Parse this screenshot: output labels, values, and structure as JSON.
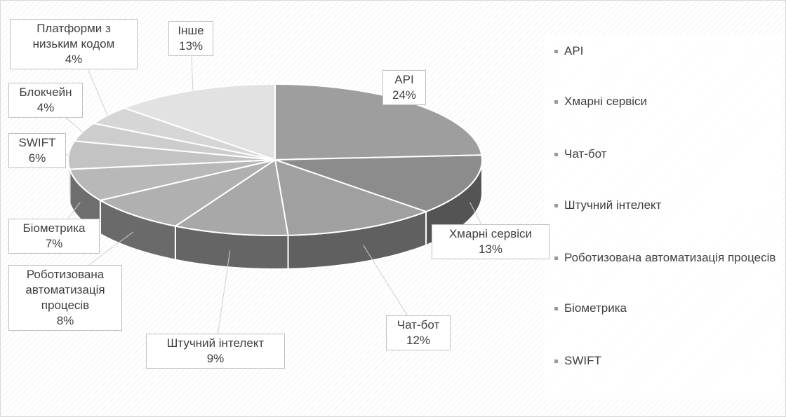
{
  "chart_data": {
    "type": "pie3d",
    "categories": [
      "API",
      "Хмарні сервіси",
      "Чат-бот",
      "Штучний інтелект",
      "Роботизована автоматизація процесів",
      "Біометрика",
      "SWIFT",
      "Блокчейн",
      "Платформи з низьким кодом",
      "Інше"
    ],
    "values": [
      24,
      13,
      12,
      9,
      8,
      7,
      6,
      4,
      4,
      13
    ],
    "value_labels": [
      "24%",
      "13%",
      "12%",
      "9%",
      "8%",
      "7%",
      "6%",
      "4%",
      "4%",
      "13%"
    ],
    "colors": [
      "#9e9e9e",
      "#8c8c8c",
      "#a0a0a0",
      "#a8a8a8",
      "#b0b0b0",
      "#b8b8b8",
      "#c3c3c3",
      "#cdcdcd",
      "#d6d6d6",
      "#e2e2e2"
    ],
    "legend": "right"
  }
}
